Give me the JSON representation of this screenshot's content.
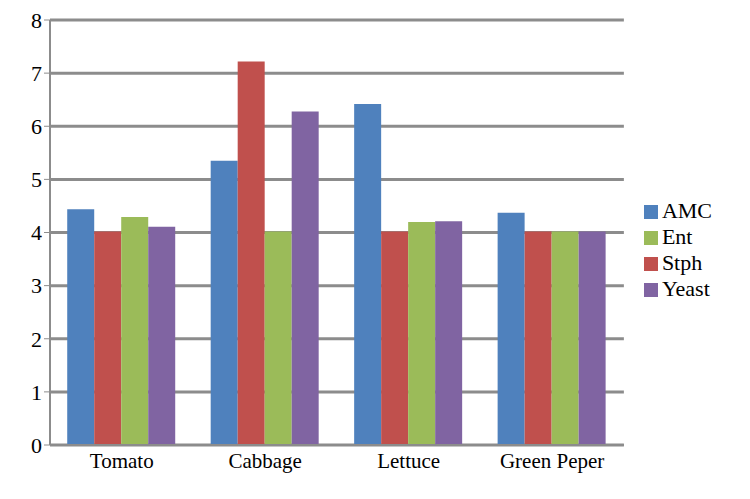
{
  "chart_data": {
    "type": "bar",
    "categories": [
      "Tomato",
      "Cabbage",
      "Lettuce",
      "Green Peper"
    ],
    "series": [
      {
        "name": "AMC",
        "color": "#4f81bd",
        "values": [
          4.44,
          5.35,
          6.42,
          4.37
        ]
      },
      {
        "name": "Stph",
        "color": "#c0504d",
        "values": [
          4.02,
          7.22,
          4.02,
          4.02
        ]
      },
      {
        "name": "Ent",
        "color": "#9bbb59",
        "values": [
          4.29,
          4.02,
          4.2,
          4.02
        ]
      },
      {
        "name": "Yeast",
        "color": "#8064a2",
        "values": [
          4.11,
          6.28,
          4.21,
          4.02
        ]
      }
    ],
    "ylim": [
      0,
      8
    ],
    "yticks": [
      0,
      1,
      2,
      3,
      4,
      5,
      6,
      7,
      8
    ],
    "grid": true,
    "legend": "right"
  }
}
